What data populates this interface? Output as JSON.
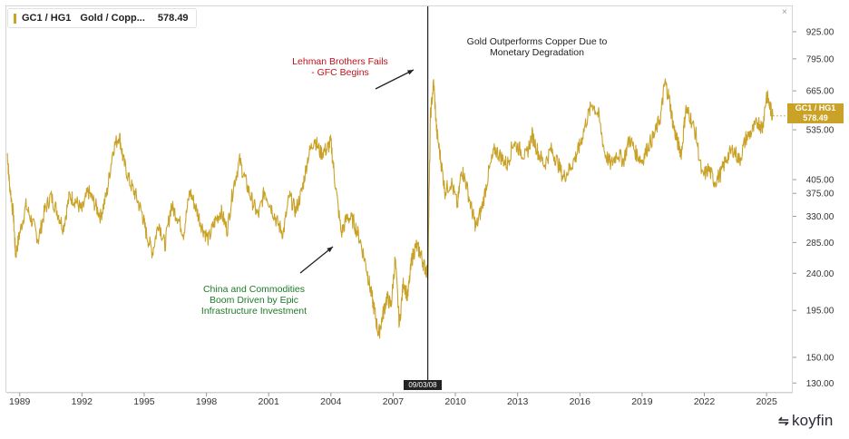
{
  "legend": {
    "symbol": "GC1 / HG1",
    "name": "Gold / Copp...",
    "value": "578.49",
    "close_glyph": "×",
    "color": "#c9a227"
  },
  "price_tag": {
    "line1": "GC1 / HG1",
    "line2": "578.49"
  },
  "date_tag": "09/03/08",
  "annotations": {
    "lehman": [
      "Lehman Brothers Fails",
      "- GFC Begins"
    ],
    "china": [
      "China and Commodities",
      "Boom Driven by Epic",
      "Infrastructure Investment"
    ],
    "gold": [
      "Gold Outperforms Copper Due to",
      "Monetary Degradation"
    ]
  },
  "logo": {
    "icon": "koyfin-logo-icon",
    "mark": "⭕",
    "text": "koyfin"
  },
  "chart_data": {
    "type": "line",
    "title": "",
    "series": [
      {
        "name": "GC1 / HG1",
        "color": "#c9a227",
        "x": [
          1988.4,
          1988.5,
          1988.7,
          1988.8,
          1989.0,
          1989.3,
          1989.6,
          1989.9,
          1990.2,
          1990.5,
          1990.8,
          1991.1,
          1991.4,
          1991.7,
          1992.0,
          1992.3,
          1992.6,
          1992.9,
          1993.2,
          1993.5,
          1993.8,
          1994.0,
          1994.3,
          1994.6,
          1994.9,
          1995.1,
          1995.4,
          1995.7,
          1996.0,
          1996.3,
          1996.6,
          1996.9,
          1997.2,
          1997.5,
          1997.8,
          1998.1,
          1998.4,
          1998.7,
          1999.0,
          1999.3,
          1999.6,
          1999.9,
          2000.2,
          2000.5,
          2000.8,
          2001.1,
          2001.4,
          2001.7,
          2002.0,
          2002.3,
          2002.6,
          2002.9,
          2003.2,
          2003.5,
          2003.8,
          2004.0,
          2004.2,
          2004.5,
          2004.8,
          2005.1,
          2005.4,
          2005.7,
          2005.9,
          2006.1,
          2006.3,
          2006.5,
          2006.7,
          2006.9,
          2007.1,
          2007.3,
          2007.5,
          2007.7,
          2007.9,
          2008.1,
          2008.3,
          2008.5,
          2008.67,
          2008.8,
          2008.95,
          2009.1,
          2009.3,
          2009.5,
          2009.8,
          2010.1,
          2010.3,
          2010.5,
          2010.8,
          2011.0,
          2011.3,
          2011.6,
          2011.9,
          2012.2,
          2012.5,
          2012.8,
          2013.1,
          2013.4,
          2013.7,
          2014.0,
          2014.3,
          2014.6,
          2014.9,
          2015.2,
          2015.5,
          2015.8,
          2016.0,
          2016.3,
          2016.6,
          2016.9,
          2017.2,
          2017.5,
          2017.8,
          2018.1,
          2018.4,
          2018.7,
          2019.0,
          2019.3,
          2019.6,
          2019.9,
          2020.1,
          2020.3,
          2020.5,
          2020.7,
          2020.9,
          2021.1,
          2021.3,
          2021.6,
          2021.9,
          2022.2,
          2022.5,
          2022.8,
          2023.1,
          2023.4,
          2023.7,
          2024.0,
          2024.3,
          2024.6,
          2024.8,
          2025.0,
          2025.2,
          2025.3
        ],
        "y": [
          470,
          400,
          330,
          265,
          300,
          350,
          320,
          290,
          340,
          370,
          340,
          310,
          370,
          360,
          340,
          380,
          355,
          330,
          375,
          480,
          520,
          450,
          400,
          370,
          335,
          300,
          270,
          320,
          280,
          350,
          330,
          300,
          380,
          345,
          310,
          290,
          320,
          340,
          305,
          390,
          450,
          400,
          360,
          330,
          380,
          350,
          320,
          300,
          370,
          340,
          380,
          460,
          510,
          470,
          480,
          500,
          400,
          300,
          330,
          320,
          290,
          250,
          220,
          195,
          170,
          190,
          210,
          200,
          260,
          180,
          230,
          210,
          260,
          280,
          270,
          250,
          240,
          580,
          700,
          530,
          450,
          380,
          400,
          350,
          430,
          400,
          340,
          310,
          350,
          420,
          480,
          460,
          440,
          500,
          480,
          460,
          520,
          470,
          440,
          480,
          450,
          410,
          430,
          460,
          490,
          560,
          620,
          580,
          470,
          440,
          470,
          450,
          510,
          470,
          450,
          490,
          520,
          580,
          700,
          640,
          550,
          500,
          470,
          600,
          580,
          520,
          410,
          430,
          400,
          420,
          460,
          480,
          450,
          510,
          530,
          560,
          540,
          650,
          600,
          578
        ]
      }
    ],
    "x_ticks": [
      1989,
      1992,
      1995,
      1998,
      2001,
      2004,
      2007,
      2010,
      2013,
      2016,
      2019,
      2022,
      2025
    ],
    "x_tick_labels": [
      "1989",
      "1992",
      "1995",
      "1998",
      "2001",
      "2004",
      "2007",
      "2010",
      "2013",
      "2016",
      "2019",
      "2022",
      "2025"
    ],
    "y_ticks": [
      130,
      150,
      195,
      240,
      285,
      330,
      375,
      405,
      535,
      665,
      795,
      925
    ],
    "y_tick_labels": [
      "130.00",
      "150.00",
      "195.00",
      "240.00",
      "285.00",
      "330.00",
      "375.00",
      "405.00",
      "535.00",
      "665.00",
      "795.00",
      "925.00"
    ],
    "xlim": [
      1988.4,
      2026.0
    ],
    "ylim": [
      125,
      1050
    ],
    "y_scale": "log",
    "vertical_marker": 2008.67,
    "grid": false,
    "xlabel": "",
    "ylabel": ""
  }
}
